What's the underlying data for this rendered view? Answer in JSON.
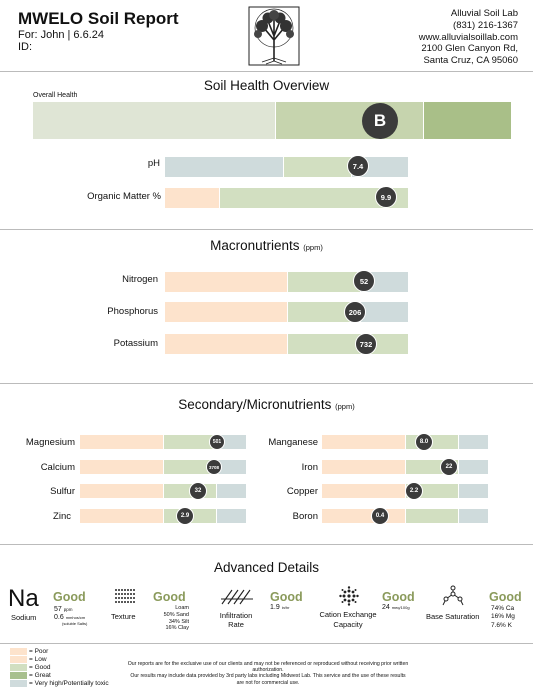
{
  "header": {
    "title": "MWELO Soil Report",
    "for_line": "For: John | 6.6.24",
    "id_line": "ID:",
    "lab_name": "Alluvial Soil Lab",
    "lab_phone": "(831) 216-1367",
    "lab_web": "www.alluvialsoillab.com",
    "lab_addr1": "2100 Glen Canyon Rd,",
    "lab_addr2": "Santa Cruz, CA 95060"
  },
  "overview": {
    "title": "Soil Health Overview",
    "overall_label": "Overall Health",
    "overall_grade": "B",
    "ph_label": "pH",
    "ph_value": "7.4",
    "om_label": "Organic Matter %",
    "om_value": "9.9"
  },
  "macro": {
    "title": "Macronutrients",
    "unit": "(ppm)",
    "items": [
      {
        "label": "Nitrogen",
        "value": "52"
      },
      {
        "label": "Phosphorus",
        "value": "206"
      },
      {
        "label": "Potassium",
        "value": "732"
      }
    ]
  },
  "micro": {
    "title": "Secondary/Micronutrients",
    "unit": "(ppm)",
    "left": [
      {
        "label": "Magnesium",
        "value": "501"
      },
      {
        "label": "Calcium",
        "value": "3708"
      },
      {
        "label": "Sulfur",
        "value": "32"
      },
      {
        "label": "Zinc",
        "value": "2.9"
      }
    ],
    "right": [
      {
        "label": "Manganese",
        "value": "8.0"
      },
      {
        "label": "Iron",
        "value": "22"
      },
      {
        "label": "Copper",
        "value": "2.2"
      },
      {
        "label": "Boron",
        "value": "0.4"
      }
    ]
  },
  "advanced": {
    "title": "Advanced Details",
    "sodium": {
      "symbol": "Na",
      "name": "Sodium",
      "rating": "Good",
      "v1": "57",
      "u1": "ppm",
      "v2": "0.6",
      "u2": "mmhos/cm",
      "note": "(soluble Salts)"
    },
    "texture": {
      "name": "Texture",
      "rating": "Good",
      "l1": "Loam",
      "l2": "50% Sand",
      "l3": "34% Silt",
      "l4": "16% Clay"
    },
    "infiltration": {
      "name1": "Infiltration",
      "name2": "Rate",
      "rating": "Good",
      "v": "1.9",
      "u": "in/hr"
    },
    "cec": {
      "name1": "Cation Exchange",
      "name2": "Capacity",
      "rating": "Good",
      "v": "24",
      "u": "meq/100g"
    },
    "base": {
      "name": "Base Saturation",
      "rating": "Good",
      "l1": "74% Ca",
      "l2": "16% Mg",
      "l3": "7.6% K"
    }
  },
  "legend": [
    "= Poor",
    "= Low",
    "= Good",
    "= Great",
    "= Very high/Potentially toxic"
  ],
  "colors": {
    "poor": "#fde3cc",
    "good": "#d2dfc1",
    "great": "#a8c08e",
    "high": "#cfdbdc"
  },
  "footer": {
    "l1": "Our reports are for the exclusive use of our clients and may not be referenced or reproduced without receiving prior written authorization.",
    "l2": "Our results may include data provided by 3rd party labs including Midwest Lab. This service and the use of these results",
    "l3": "are not for commercial use."
  }
}
